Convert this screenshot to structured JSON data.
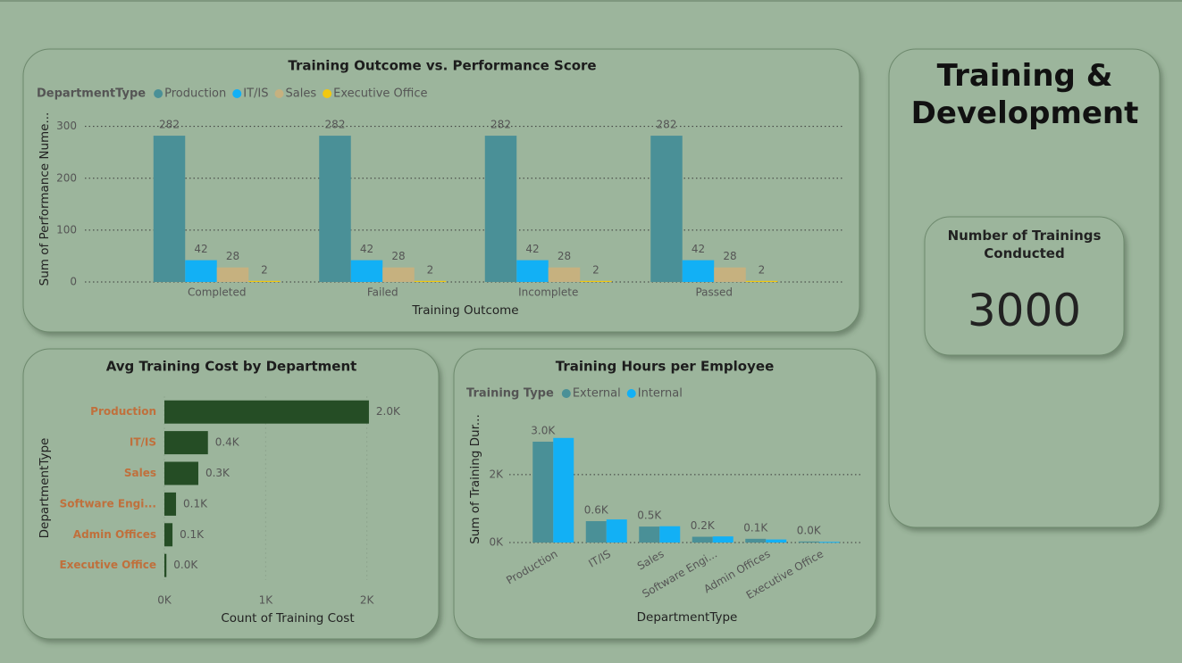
{
  "title": "Training & Development",
  "card": {
    "label": "Number of Trainings Conducted",
    "value": 3000
  },
  "chart_data": [
    {
      "type": "bar",
      "title": "Training Outcome vs. Performance Score",
      "legend_title": "DepartmentType",
      "categories": [
        "Completed",
        "Failed",
        "Incomplete",
        "Passed"
      ],
      "series": [
        {
          "name": "Production",
          "color": "#4a9097",
          "values": [
            282,
            282,
            282,
            282
          ]
        },
        {
          "name": "IT/IS",
          "color": "#12b0f5",
          "values": [
            42,
            42,
            42,
            42
          ]
        },
        {
          "name": "Sales",
          "color": "#c6b17f",
          "values": [
            28,
            28,
            28,
            28
          ]
        },
        {
          "name": "Executive Office",
          "color": "#f2c80f",
          "values": [
            2,
            2,
            2,
            2
          ]
        }
      ],
      "data_labels": true,
      "x_label": "Training Outcome",
      "y_label": "Sum of Performance Nume...",
      "ylim": [
        0,
        320
      ],
      "yticks": [
        0,
        100,
        200,
        300
      ],
      "grid": true
    },
    {
      "type": "barh",
      "title": "Avg Training Cost by Department",
      "categories": [
        "Production",
        "IT/IS",
        "Sales",
        "Software Engi...",
        "Admin Offices",
        "Executive Office"
      ],
      "values": [
        2020,
        430,
        335,
        115,
        80,
        20
      ],
      "value_labels": [
        "2.0K",
        "0.4K",
        "0.3K",
        "0.1K",
        "0.1K",
        "0.0K"
      ],
      "color": "#254d25",
      "x_label": "Count of Training Cost",
      "y_label": "DepartmentType",
      "xlim": [
        0,
        2250
      ],
      "xticks": [
        {
          "value": 0,
          "label": "0K"
        },
        {
          "value": 1000,
          "label": "1K"
        },
        {
          "value": 2000,
          "label": "2K"
        }
      ],
      "grid": true
    },
    {
      "type": "bar",
      "title": "Training Hours per Employee",
      "legend_title": "Training Type",
      "categories": [
        "Production",
        "IT/IS",
        "Sales",
        "Software Engi...",
        "Admin Offices",
        "Executive Office"
      ],
      "series": [
        {
          "name": "External",
          "color": "#4a9097",
          "values": [
            2970,
            630,
            470,
            170,
            110,
            30
          ],
          "value_labels": [
            "3.0K",
            "0.6K",
            "0.5K",
            "0.2K",
            "0.1K",
            "0.0K"
          ]
        },
        {
          "name": "Internal",
          "color": "#12b0f5",
          "values": [
            3080,
            680,
            480,
            180,
            90,
            20
          ]
        }
      ],
      "x_label": "DepartmentType",
      "y_label": "Sum of Training Dur...",
      "ylim": [
        0,
        3600
      ],
      "yticks": [
        {
          "value": 0,
          "label": "0K"
        },
        {
          "value": 2000,
          "label": "2K"
        }
      ],
      "grid": true
    }
  ]
}
